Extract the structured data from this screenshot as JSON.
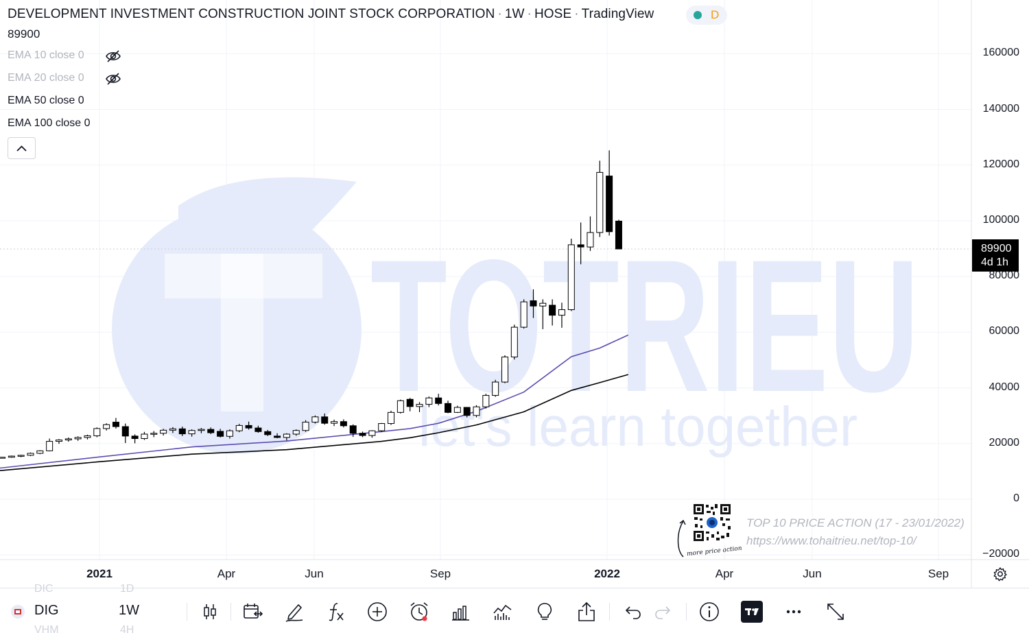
{
  "header": {
    "title": "DEVELOPMENT INVESTMENT CONSTRUCTION JOINT STOCK CORPORATION",
    "interval": "1W",
    "exchange": "HOSE",
    "source": "TradingView",
    "status_letter": "D",
    "status_color": "#26a69a",
    "status_letter_color": "#ff9800",
    "last_price": "89900"
  },
  "indicators": [
    {
      "name": "EMA",
      "values": "10 close 0",
      "visible": false
    },
    {
      "name": "EMA",
      "values": "20 close 0",
      "visible": false
    },
    {
      "name": "EMA",
      "values": "50 close 0",
      "visible": true,
      "color": "#5b4bb0"
    },
    {
      "name": "EMA",
      "values": "100 close 0",
      "visible": true,
      "color": "#000000"
    }
  ],
  "watermark": {
    "brand": "TOTRIEU",
    "slogan": "let's learn together"
  },
  "y_axis": {
    "labels": [
      "160000",
      "140000",
      "120000",
      "100000",
      "80000",
      "60000",
      "40000",
      "20000",
      "0",
      "−20000"
    ]
  },
  "price_tag": {
    "price": "89900",
    "countdown": "4d 1h"
  },
  "x_axis": {
    "labels": [
      {
        "text": "2021",
        "bold": true
      },
      {
        "text": "Apr",
        "bold": false
      },
      {
        "text": "Jun",
        "bold": false
      },
      {
        "text": "Sep",
        "bold": false
      },
      {
        "text": "2022",
        "bold": true
      },
      {
        "text": "Apr",
        "bold": false
      },
      {
        "text": "Jun",
        "bold": false
      },
      {
        "text": "Sep",
        "bold": false
      }
    ]
  },
  "promo": {
    "line1": "TOP 10 PRICE ACTION (17 - 23/01/2022)",
    "line2": "https://www.tohaitrieu.net/top-10/",
    "caption": "more price action"
  },
  "toolbar": {
    "symbol": "DIG",
    "timeframe": "1W",
    "ghost_symbol_above": "DIC",
    "ghost_tf_above": "1D",
    "ghost_symbol_below": "VHM",
    "ghost_tf_below": "4H",
    "icons": [
      "candles-icon",
      "calendar-range-icon",
      "pencil-icon",
      "formula-icon",
      "add-circle-icon",
      "alarm-icon",
      "bar-chart-icon",
      "volume-profile-icon",
      "lightbulb-icon",
      "share-icon",
      "undo-icon",
      "redo-icon",
      "info-icon",
      "tradingview-logo-icon",
      "more-icon",
      "fullscreen-icon"
    ]
  },
  "chart_data": {
    "type": "candlestick",
    "title": "DEVELOPMENT INVESTMENT CONSTRUCTION JOINT STOCK CORPORATION",
    "interval": "1W",
    "ylim": [
      -20000,
      170000
    ],
    "grid": true,
    "candles": [
      [
        14900,
        15200,
        14700,
        15100
      ],
      [
        15100,
        15700,
        14900,
        15500
      ],
      [
        15500,
        16000,
        15100,
        15800
      ],
      [
        15800,
        16800,
        15500,
        16500
      ],
      [
        16500,
        17600,
        16200,
        17400
      ],
      [
        17400,
        21800,
        17200,
        20800
      ],
      [
        20800,
        21600,
        19900,
        21300
      ],
      [
        21300,
        22200,
        20700,
        21700
      ],
      [
        21700,
        22600,
        21000,
        22200
      ],
      [
        22200,
        23200,
        21500,
        22800
      ],
      [
        22800,
        25800,
        22300,
        25400
      ],
      [
        25400,
        27300,
        24700,
        26800
      ],
      [
        27700,
        29200,
        25400,
        26100
      ],
      [
        26100,
        27200,
        20200,
        22700
      ],
      [
        22700,
        23300,
        20100,
        21800
      ],
      [
        21800,
        24200,
        21300,
        23400
      ],
      [
        23400,
        24500,
        22300,
        23700
      ],
      [
        23700,
        25300,
        22900,
        24800
      ],
      [
        24800,
        25900,
        23800,
        25300
      ],
      [
        25300,
        26100,
        22700,
        23500
      ],
      [
        23500,
        25100,
        22500,
        24700
      ],
      [
        24700,
        25600,
        23700,
        25100
      ],
      [
        25100,
        25800,
        23400,
        23900
      ],
      [
        24400,
        25300,
        22200,
        22600
      ],
      [
        22600,
        25100,
        21800,
        24600
      ],
      [
        24600,
        27100,
        24100,
        26500
      ],
      [
        26500,
        27900,
        25000,
        25600
      ],
      [
        25600,
        26400,
        23900,
        24300
      ],
      [
        24300,
        24900,
        22700,
        23200
      ],
      [
        22700,
        23700,
        21900,
        22200
      ],
      [
        22200,
        23700,
        21100,
        23400
      ],
      [
        23400,
        25100,
        22800,
        24700
      ],
      [
        24700,
        28400,
        24200,
        27700
      ],
      [
        27700,
        30100,
        27200,
        29600
      ],
      [
        29600,
        30800,
        26800,
        27300
      ],
      [
        27300,
        28600,
        26300,
        27900
      ],
      [
        27900,
        28700,
        25800,
        26400
      ],
      [
        26400,
        26900,
        22400,
        23700
      ],
      [
        23700,
        24300,
        22300,
        22900
      ],
      [
        22900,
        24800,
        22100,
        24600
      ],
      [
        24600,
        27400,
        24100,
        27200
      ],
      [
        27200,
        31800,
        26700,
        31200
      ],
      [
        31200,
        35800,
        30800,
        35400
      ],
      [
        35900,
        36400,
        31600,
        33300
      ],
      [
        33300,
        34900,
        31300,
        34100
      ],
      [
        34100,
        36900,
        33100,
        36400
      ],
      [
        36400,
        37900,
        33700,
        34400
      ],
      [
        34400,
        35400,
        30900,
        31200
      ],
      [
        31200,
        33600,
        31000,
        33000
      ],
      [
        33000,
        33100,
        29400,
        30100
      ],
      [
        30100,
        33800,
        29400,
        33200
      ],
      [
        33200,
        37900,
        32600,
        37300
      ],
      [
        37300,
        42900,
        36800,
        42100
      ],
      [
        42100,
        51700,
        41700,
        51100
      ],
      [
        51100,
        62700,
        50200,
        61800
      ],
      [
        61800,
        71800,
        61300,
        70900
      ],
      [
        71300,
        75400,
        65100,
        69400
      ],
      [
        69400,
        71800,
        61100,
        70400
      ],
      [
        69700,
        71800,
        62400,
        66100
      ],
      [
        66100,
        70600,
        61600,
        68100
      ],
      [
        68100,
        93600,
        67600,
        91400
      ],
      [
        91400,
        99400,
        84400,
        90600
      ],
      [
        90600,
        101600,
        89200,
        95800
      ],
      [
        95800,
        121600,
        94200,
        117400
      ],
      [
        116100,
        125300,
        94700,
        96100
      ],
      [
        99900,
        100400,
        89900,
        89900
      ]
    ],
    "series": [
      {
        "name": "EMA 50 close 0",
        "color": "#5b4bb0",
        "x": [
          0,
          10,
          20,
          30,
          40,
          43,
          46,
          50,
          55,
          60,
          63,
          66
        ],
        "values": [
          11200,
          15100,
          18800,
          20900,
          24300,
          25400,
          27300,
          31600,
          38500,
          51200,
          54300,
          59000
        ]
      },
      {
        "name": "EMA 100 close 0",
        "color": "#000000",
        "x": [
          0,
          10,
          20,
          30,
          40,
          43,
          46,
          50,
          55,
          60,
          63,
          66
        ],
        "values": [
          10300,
          13400,
          16200,
          17800,
          20800,
          22100,
          23900,
          26700,
          31400,
          39100,
          41900,
          44800
        ]
      }
    ]
  }
}
